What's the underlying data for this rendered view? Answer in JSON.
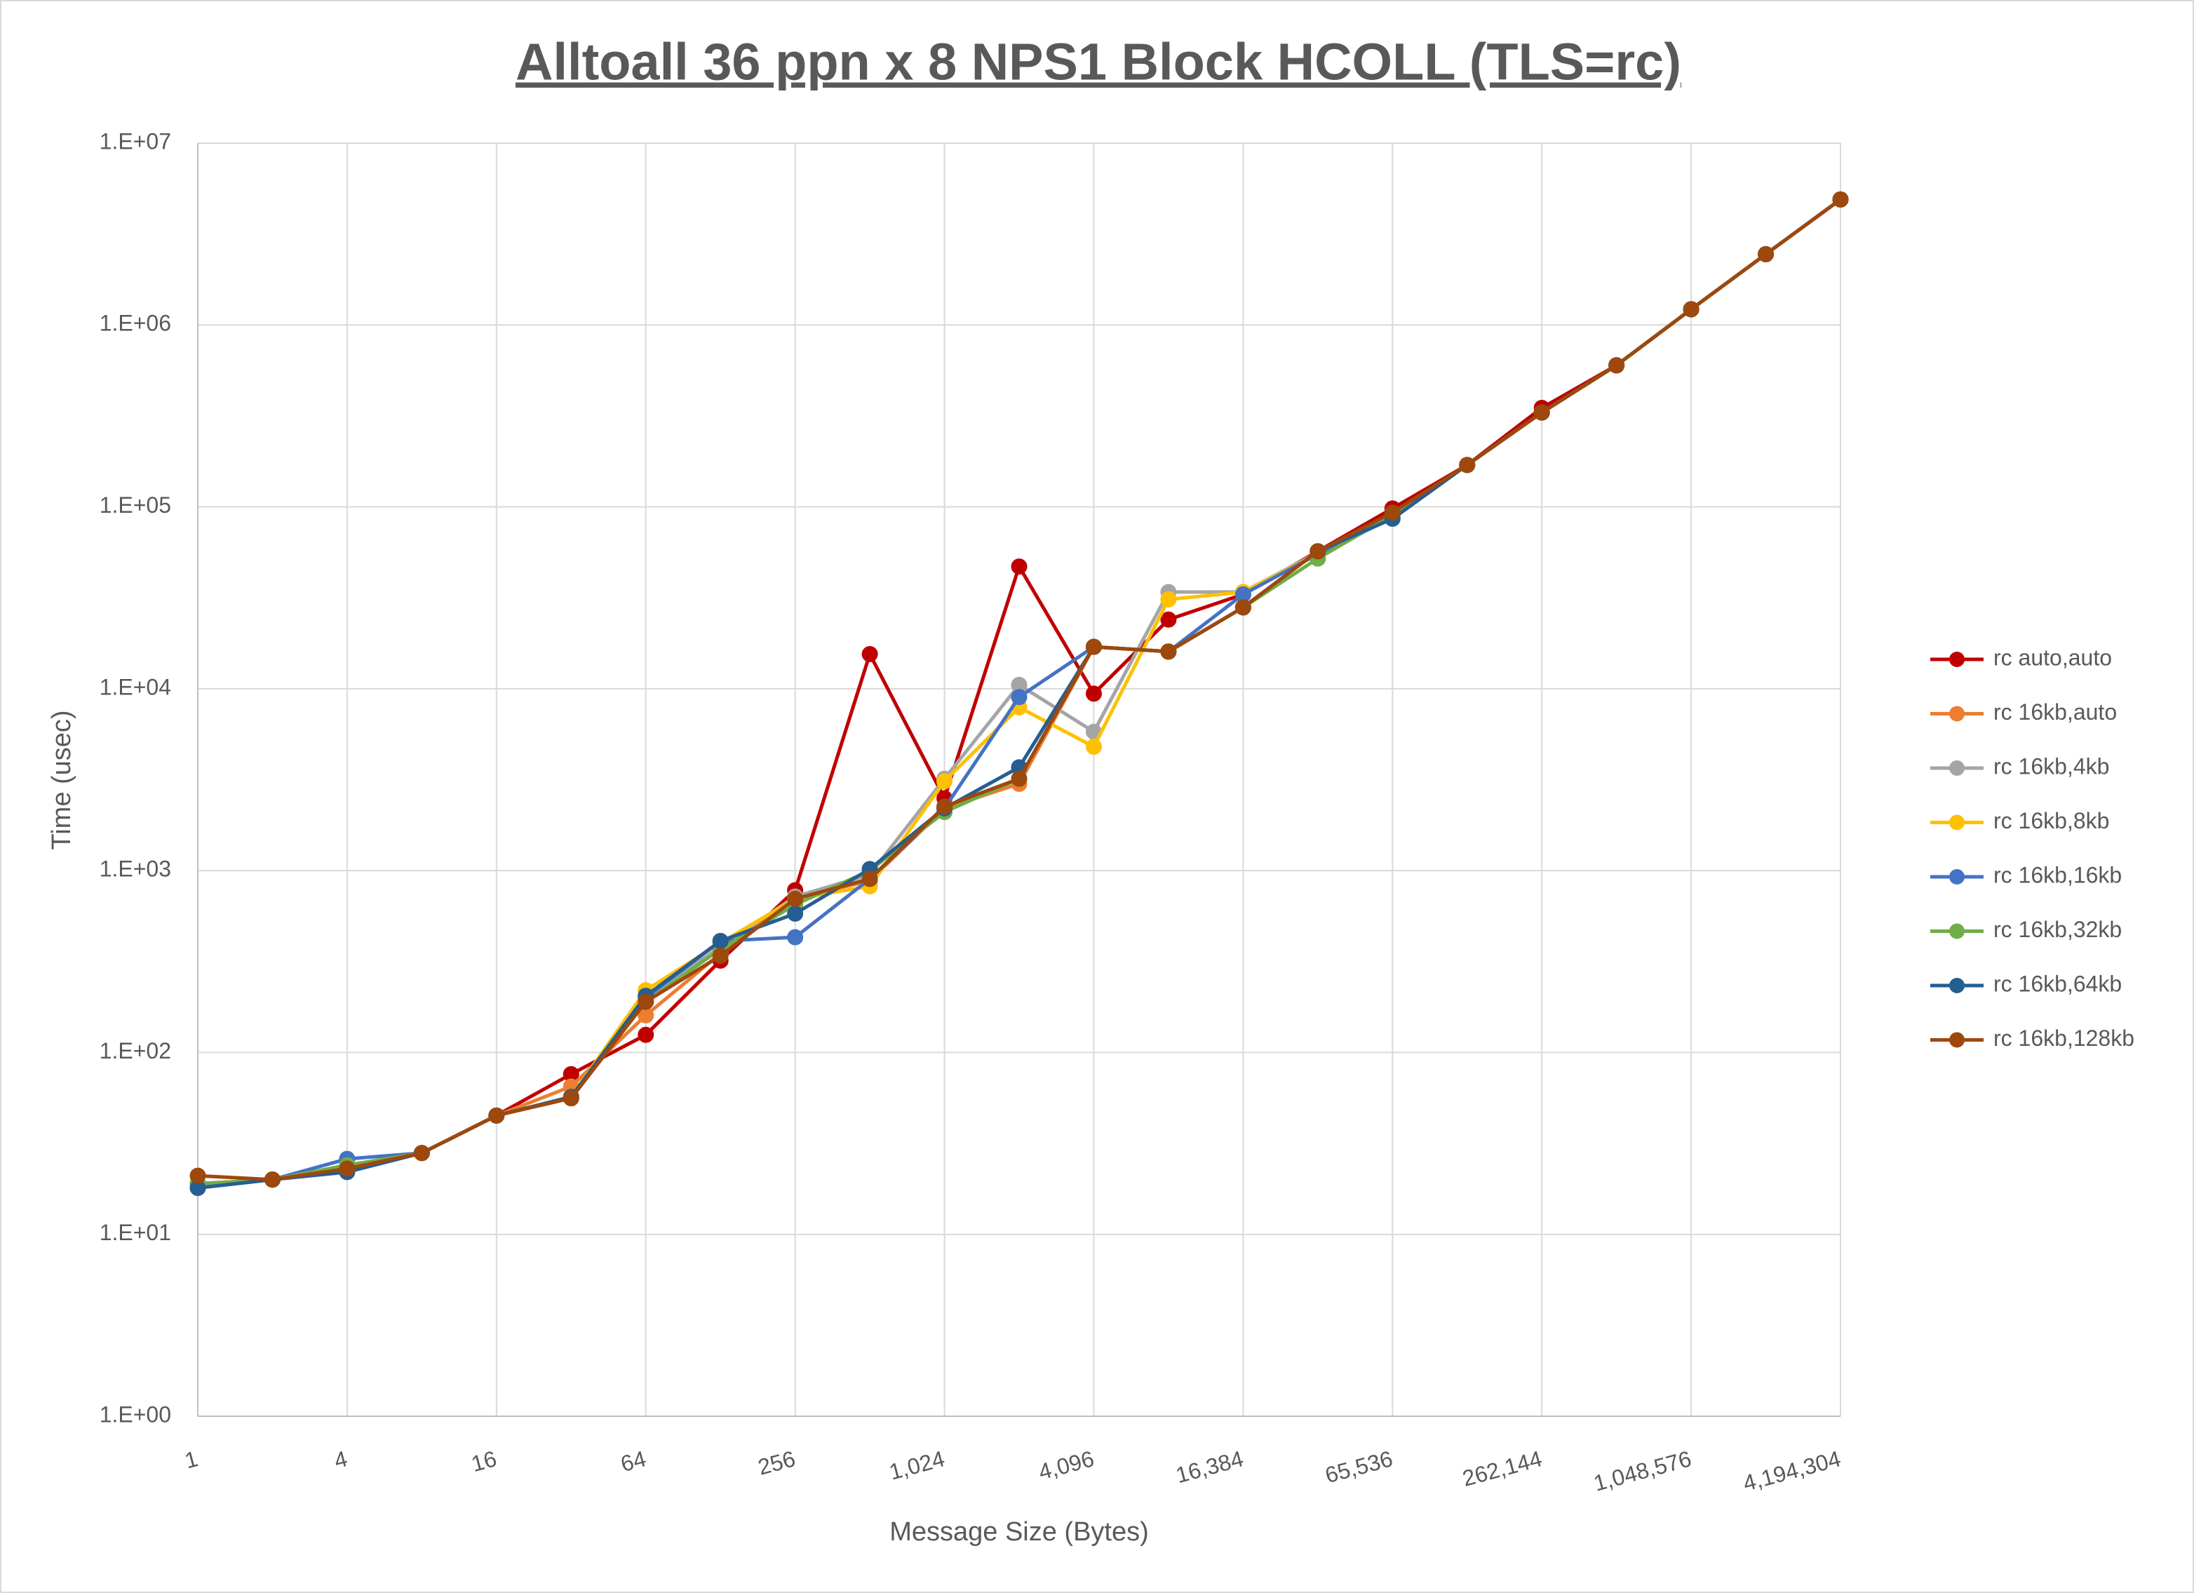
{
  "chart_data": {
    "type": "line",
    "title": "Alltoall 36 ppn x 8 NPS1 Block HCOLL (TLS=rc)",
    "x_label": "Message Size (Bytes)",
    "y_label": "Time (usec)",
    "xscale": "log",
    "yscale": "log",
    "grid": true,
    "legend": "right",
    "x": [
      1,
      2,
      4,
      8,
      16,
      32,
      64,
      128,
      256,
      512,
      1024,
      2048,
      4096,
      8192,
      16384,
      32768,
      65536,
      131072,
      262144,
      524288,
      1048576,
      2097152,
      4194304
    ],
    "xlim": [
      1,
      4194304
    ],
    "xticks": [
      1,
      4,
      16,
      64,
      256,
      {
        "value": 1024,
        "label": "1,024"
      },
      {
        "value": 4096,
        "label": "4,096"
      },
      {
        "value": 16384,
        "label": "16,384"
      },
      {
        "value": 65536,
        "label": "65,536"
      },
      {
        "value": 262144,
        "label": "262,144"
      },
      {
        "value": 1048576,
        "label": "1,048,576"
      },
      {
        "value": 4194304,
        "label": "4,194,304"
      }
    ],
    "ylim": [
      1,
      10000000
    ],
    "yticks": [
      {
        "value": 1,
        "label": "1.E+00"
      },
      {
        "value": 10,
        "label": "1.E+01"
      },
      {
        "value": 100,
        "label": "1.E+02"
      },
      {
        "value": 1000,
        "label": "1.E+03"
      },
      {
        "value": 10000,
        "label": "1.E+04"
      },
      {
        "value": 100000,
        "label": "1.E+05"
      },
      {
        "value": 1000000,
        "label": "1.E+06"
      },
      {
        "value": 10000000,
        "label": "1.E+07"
      }
    ],
    "series": [
      {
        "name": "rc auto,auto",
        "color": "#c00000",
        "values": [
          19,
          20,
          23,
          28,
          45,
          76,
          125,
          320,
          780,
          15500,
          2500,
          47000,
          9400,
          24000,
          33000,
          57000,
          98000,
          170000,
          350000,
          600000,
          1220000,
          2450000,
          4900000
        ]
      },
      {
        "name": "rc 16kb,auto",
        "color": "#ed7d31",
        "values": [
          19,
          20,
          23,
          28,
          45,
          65,
          160,
          350,
          700,
          880,
          2200,
          3000,
          17000,
          16000,
          28000,
          57000,
          90000,
          170000,
          330000,
          600000,
          1220000,
          2450000,
          4900000
        ]
      },
      {
        "name": "rc 16kb,4kb",
        "color": "#a5a5a5",
        "values": [
          19,
          20,
          24,
          28,
          45,
          57,
          200,
          380,
          720,
          950,
          3200,
          10500,
          5800,
          34000,
          34000,
          56000,
          90000,
          170000,
          330000,
          600000,
          1220000,
          2450000,
          4900000
        ]
      },
      {
        "name": "rc 16kb,8kb",
        "color": "#ffc000",
        "values": [
          19,
          20,
          24,
          28,
          45,
          57,
          220,
          400,
          700,
          820,
          3100,
          7900,
          4800,
          31000,
          34000,
          55000,
          90000,
          170000,
          330000,
          600000,
          1220000,
          2450000,
          4900000
        ]
      },
      {
        "name": "rc 16kb,16kb",
        "color": "#4472c4",
        "values": [
          18,
          20,
          26,
          28,
          45,
          57,
          200,
          410,
          430,
          900,
          2200,
          9000,
          17000,
          16000,
          33000,
          55000,
          87000,
          170000,
          330000,
          600000,
          1220000,
          2450000,
          4900000
        ]
      },
      {
        "name": "rc 16kb,32kb",
        "color": "#70ad47",
        "values": [
          19,
          20,
          24,
          28,
          45,
          57,
          190,
          370,
          650,
          1000,
          2100,
          3200,
          17000,
          16000,
          28000,
          52000,
          90000,
          170000,
          330000,
          600000,
          1220000,
          2450000,
          4900000
        ]
      },
      {
        "name": "rc 16kb,64kb",
        "color": "#255e91",
        "values": [
          18,
          20,
          22,
          28,
          45,
          57,
          205,
          410,
          580,
          1020,
          2200,
          3700,
          17000,
          16000,
          28000,
          57000,
          86000,
          170000,
          330000,
          600000,
          1220000,
          2450000,
          4900000
        ]
      },
      {
        "name": "rc 16kb,128kb",
        "color": "#9e480e",
        "values": [
          21,
          20,
          23,
          28,
          45,
          56,
          190,
          340,
          700,
          900,
          2250,
          3200,
          17000,
          16000,
          28000,
          57000,
          93000,
          170000,
          330000,
          600000,
          1220000,
          2450000,
          4900000
        ]
      }
    ]
  }
}
